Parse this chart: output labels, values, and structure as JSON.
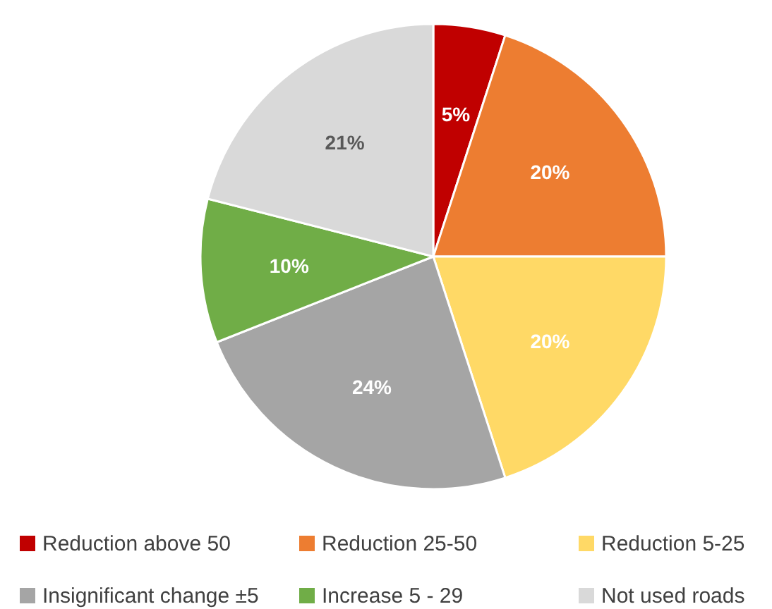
{
  "chart_data": {
    "type": "pie",
    "categories": [
      "Reduction above 50",
      "Reduction 25-50",
      "Reduction 5-25",
      "Insignificant change ±5",
      "Increase 5 - 29",
      "Not used roads"
    ],
    "values": [
      5,
      20,
      20,
      24,
      10,
      21
    ],
    "colors": [
      "#c00000",
      "#ed7d31",
      "#ffd966",
      "#a5a5a5",
      "#70ad47",
      "#d9d9d9"
    ],
    "value_labels": [
      "5%",
      "20%",
      "20%",
      "24%",
      "10%",
      "21%"
    ],
    "legend": "bottom"
  }
}
